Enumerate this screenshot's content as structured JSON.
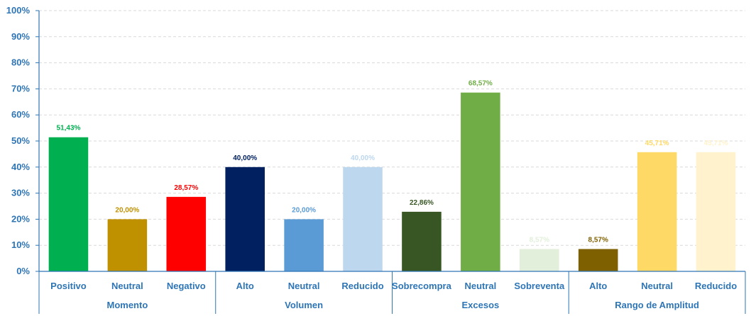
{
  "chart_data": {
    "type": "bar",
    "ylim": [
      0,
      100
    ],
    "y_ticks": [
      "0%",
      "10%",
      "20%",
      "30%",
      "40%",
      "50%",
      "60%",
      "70%",
      "80%",
      "90%",
      "100%"
    ],
    "grid": true,
    "groups": [
      {
        "name": "Momento",
        "bars": [
          {
            "category": "Positivo",
            "value": 51.43,
            "label": "51,43%",
            "color": "#00B050"
          },
          {
            "category": "Neutral",
            "value": 20.0,
            "label": "20,00%",
            "color": "#BF9000"
          },
          {
            "category": "Negativo",
            "value": 28.57,
            "label": "28,57%",
            "color": "#FF0000"
          }
        ]
      },
      {
        "name": "Volumen",
        "bars": [
          {
            "category": "Alto",
            "value": 40.0,
            "label": "40,00%",
            "color": "#002060"
          },
          {
            "category": "Neutral",
            "value": 20.0,
            "label": "20,00%",
            "color": "#5B9BD5"
          },
          {
            "category": "Reducido",
            "value": 40.0,
            "label": "40,00%",
            "color": "#BDD7EE"
          }
        ]
      },
      {
        "name": "Excesos",
        "bars": [
          {
            "category": "Sobrecompra",
            "value": 22.86,
            "label": "22,86%",
            "color": "#375623"
          },
          {
            "category": "Neutral",
            "value": 68.57,
            "label": "68,57%",
            "color": "#70AD47"
          },
          {
            "category": "Sobreventa",
            "value": 8.57,
            "label": "8,57%",
            "color": "#E2EFDA"
          }
        ]
      },
      {
        "name": "Rango de Amplitud",
        "bars": [
          {
            "category": "Alto",
            "value": 8.57,
            "label": "8,57%",
            "color": "#7F6000"
          },
          {
            "category": "Neutral",
            "value": 45.71,
            "label": "45,71%",
            "color": "#FFD966"
          },
          {
            "category": "Reducido",
            "value": 45.71,
            "label": "45,71%",
            "color": "#FFF2CC"
          }
        ]
      }
    ],
    "axis_color": "#2E75B6"
  }
}
